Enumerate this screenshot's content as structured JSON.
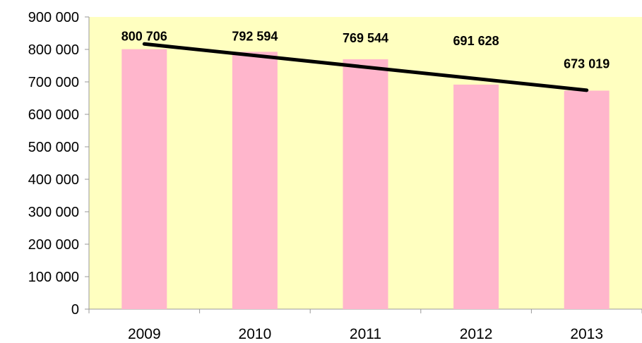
{
  "chart_data": {
    "type": "bar",
    "categories": [
      "2009",
      "2010",
      "2011",
      "2012",
      "2013"
    ],
    "values": [
      800706,
      792594,
      769544,
      691628,
      673019
    ],
    "data_labels": [
      "800 706",
      "792 594",
      "769 544",
      "691 628",
      "673 019"
    ],
    "ylim": [
      0,
      900000
    ],
    "y_ticks": [
      0,
      100000,
      200000,
      300000,
      400000,
      500000,
      600000,
      700000,
      800000,
      900000
    ],
    "y_tick_labels": [
      "0",
      "100 000",
      "200 000",
      "300 000",
      "400 000",
      "500 000",
      "600 000",
      "700 000",
      "800 000",
      "900 000"
    ],
    "trendline": {
      "type": "linear"
    },
    "grid": false,
    "legend": "none",
    "colors": {
      "plot_background": "#FFFFC0",
      "bar": "#FFB6CC",
      "trendline": "#000000",
      "axis": "#999999"
    }
  }
}
